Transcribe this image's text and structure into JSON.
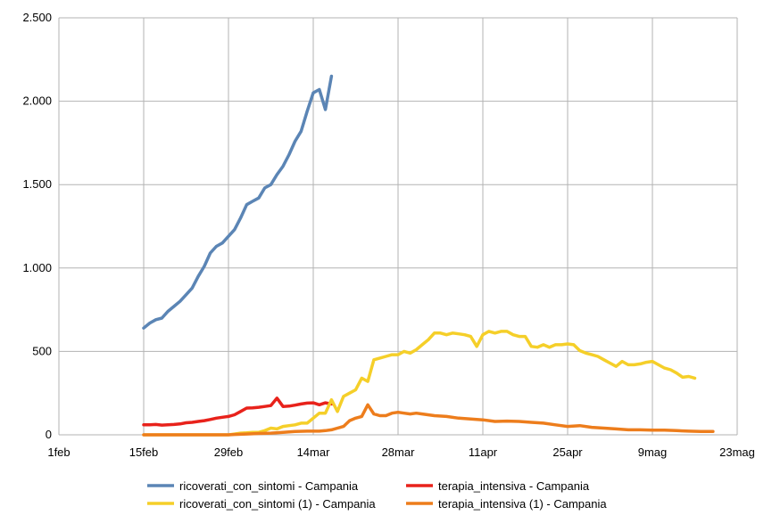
{
  "chart_data": {
    "type": "line",
    "x_axis": {
      "type": "date",
      "min": "2020-02-01",
      "max": "2020-05-23",
      "tick_labels": [
        "1feb",
        "15feb",
        "29feb",
        "14mar",
        "28mar",
        "11apr",
        "25apr",
        "9mag",
        "23mag"
      ],
      "tick_dates": [
        "2020-02-01",
        "2020-02-15",
        "2020-02-29",
        "2020-03-14",
        "2020-03-28",
        "2020-04-11",
        "2020-04-25",
        "2020-05-09",
        "2020-05-23"
      ]
    },
    "y_axis": {
      "min": 0,
      "max": 2500,
      "ticks": [
        0,
        500,
        1000,
        1500,
        2000,
        2500
      ],
      "tick_labels": [
        "0",
        "500",
        "1.000",
        "1.500",
        "2.000",
        "2.500"
      ]
    },
    "grid": true,
    "legend_position": "bottom",
    "series": [
      {
        "name": "ricoverati_con_sintomi - Campania",
        "color": "#5b85b5",
        "x": [
          "2020-02-15",
          "2020-02-16",
          "2020-02-17",
          "2020-02-18",
          "2020-02-19",
          "2020-02-20",
          "2020-02-21",
          "2020-02-22",
          "2020-02-23",
          "2020-02-24",
          "2020-02-25",
          "2020-02-26",
          "2020-02-27",
          "2020-02-28",
          "2020-02-29",
          "2020-03-01",
          "2020-03-02",
          "2020-03-03",
          "2020-03-04",
          "2020-03-05",
          "2020-03-06",
          "2020-03-07",
          "2020-03-08",
          "2020-03-09",
          "2020-03-10",
          "2020-03-11",
          "2020-03-12",
          "2020-03-13",
          "2020-03-14",
          "2020-03-15",
          "2020-03-16",
          "2020-03-17",
          "2020-03-18"
        ],
        "y": [
          640,
          670,
          690,
          700,
          740,
          770,
          800,
          840,
          880,
          950,
          1010,
          1090,
          1130,
          1150,
          1190,
          1230,
          1300,
          1380,
          1400,
          1420,
          1480,
          1500,
          1560,
          1610,
          1680,
          1760,
          1820,
          1940,
          2050,
          2070,
          1950,
          2150,
          null
        ]
      },
      {
        "name": "terapia_intensiva - Campania",
        "color": "#e8221b",
        "x": [
          "2020-02-15",
          "2020-02-16",
          "2020-02-17",
          "2020-02-18",
          "2020-02-19",
          "2020-02-20",
          "2020-02-21",
          "2020-02-22",
          "2020-02-23",
          "2020-02-24",
          "2020-02-25",
          "2020-02-26",
          "2020-02-27",
          "2020-02-28",
          "2020-02-29",
          "2020-03-01",
          "2020-03-02",
          "2020-03-03",
          "2020-03-04",
          "2020-03-05",
          "2020-03-06",
          "2020-03-07",
          "2020-03-08",
          "2020-03-09",
          "2020-03-10",
          "2020-03-11",
          "2020-03-12",
          "2020-03-13",
          "2020-03-14",
          "2020-03-15",
          "2020-03-16",
          "2020-03-17",
          "2020-03-18"
        ],
        "y": [
          60,
          60,
          62,
          58,
          60,
          62,
          65,
          72,
          75,
          80,
          85,
          92,
          100,
          105,
          110,
          120,
          140,
          160,
          162,
          165,
          170,
          175,
          220,
          170,
          172,
          178,
          185,
          190,
          192,
          180,
          192,
          185,
          null
        ]
      },
      {
        "name": "ricoverati_con_sintomi (1) - Campania",
        "color": "#f5cf29",
        "x": [
          "2020-02-15",
          "2020-02-17",
          "2020-02-19",
          "2020-02-21",
          "2020-02-23",
          "2020-02-25",
          "2020-02-27",
          "2020-02-29",
          "2020-03-01",
          "2020-03-02",
          "2020-03-03",
          "2020-03-04",
          "2020-03-05",
          "2020-03-06",
          "2020-03-07",
          "2020-03-08",
          "2020-03-09",
          "2020-03-10",
          "2020-03-11",
          "2020-03-12",
          "2020-03-13",
          "2020-03-14",
          "2020-03-15",
          "2020-03-16",
          "2020-03-17",
          "2020-03-18",
          "2020-03-19",
          "2020-03-20",
          "2020-03-21",
          "2020-03-22",
          "2020-03-23",
          "2020-03-24",
          "2020-03-25",
          "2020-03-26",
          "2020-03-27",
          "2020-03-28",
          "2020-03-29",
          "2020-03-30",
          "2020-03-31",
          "2020-04-01",
          "2020-04-02",
          "2020-04-03",
          "2020-04-04",
          "2020-04-05",
          "2020-04-06",
          "2020-04-07",
          "2020-04-08",
          "2020-04-09",
          "2020-04-10",
          "2020-04-11",
          "2020-04-12",
          "2020-04-13",
          "2020-04-14",
          "2020-04-15",
          "2020-04-16",
          "2020-04-17",
          "2020-04-18",
          "2020-04-19",
          "2020-04-20",
          "2020-04-21",
          "2020-04-22",
          "2020-04-23",
          "2020-04-24",
          "2020-04-25",
          "2020-04-26",
          "2020-04-27",
          "2020-04-28",
          "2020-04-29",
          "2020-04-30",
          "2020-05-01",
          "2020-05-02",
          "2020-05-03",
          "2020-05-04",
          "2020-05-05",
          "2020-05-06",
          "2020-05-07",
          "2020-05-08",
          "2020-05-09",
          "2020-05-10",
          "2020-05-11",
          "2020-05-12",
          "2020-05-13",
          "2020-05-14",
          "2020-05-15",
          "2020-05-16",
          "2020-05-17",
          "2020-05-18",
          "2020-05-19"
        ],
        "y": [
          0,
          0,
          0,
          0,
          0,
          0,
          0,
          0,
          5,
          10,
          12,
          15,
          15,
          25,
          40,
          35,
          50,
          55,
          60,
          70,
          70,
          100,
          130,
          130,
          210,
          140,
          230,
          250,
          270,
          340,
          320,
          450,
          460,
          470,
          480,
          480,
          500,
          490,
          510,
          540,
          570,
          610,
          610,
          600,
          610,
          605,
          600,
          590,
          530,
          600,
          620,
          610,
          620,
          620,
          600,
          590,
          590,
          530,
          525,
          540,
          525,
          540,
          540,
          545,
          540,
          505,
          490,
          480,
          470,
          450,
          430,
          410,
          440,
          420,
          420,
          425,
          435,
          440,
          420,
          400,
          390,
          370,
          345,
          350,
          340,
          null,
          null,
          null
        ]
      },
      {
        "name": "terapia_intensiva (1) - Campania",
        "color": "#ed7d1c",
        "x": [
          "2020-02-15",
          "2020-02-17",
          "2020-02-19",
          "2020-02-21",
          "2020-02-23",
          "2020-02-25",
          "2020-02-27",
          "2020-02-29",
          "2020-03-01",
          "2020-03-03",
          "2020-03-05",
          "2020-03-07",
          "2020-03-09",
          "2020-03-11",
          "2020-03-13",
          "2020-03-15",
          "2020-03-16",
          "2020-03-17",
          "2020-03-18",
          "2020-03-19",
          "2020-03-20",
          "2020-03-21",
          "2020-03-22",
          "2020-03-23",
          "2020-03-24",
          "2020-03-25",
          "2020-03-26",
          "2020-03-27",
          "2020-03-28",
          "2020-03-29",
          "2020-03-30",
          "2020-03-31",
          "2020-04-01",
          "2020-04-03",
          "2020-04-05",
          "2020-04-07",
          "2020-04-09",
          "2020-04-11",
          "2020-04-13",
          "2020-04-15",
          "2020-04-17",
          "2020-04-19",
          "2020-04-21",
          "2020-04-23",
          "2020-04-25",
          "2020-04-27",
          "2020-04-29",
          "2020-05-01",
          "2020-05-03",
          "2020-05-05",
          "2020-05-07",
          "2020-05-09",
          "2020-05-11",
          "2020-05-13",
          "2020-05-15",
          "2020-05-17",
          "2020-05-19"
        ],
        "y": [
          0,
          0,
          0,
          0,
          0,
          0,
          0,
          0,
          2,
          5,
          8,
          10,
          15,
          20,
          22,
          22,
          25,
          30,
          40,
          50,
          85,
          100,
          110,
          180,
          125,
          115,
          115,
          130,
          135,
          130,
          125,
          130,
          125,
          115,
          110,
          100,
          95,
          90,
          80,
          82,
          80,
          75,
          70,
          60,
          50,
          55,
          45,
          40,
          35,
          30,
          30,
          28,
          28,
          25,
          22,
          20,
          20
        ]
      }
    ]
  }
}
